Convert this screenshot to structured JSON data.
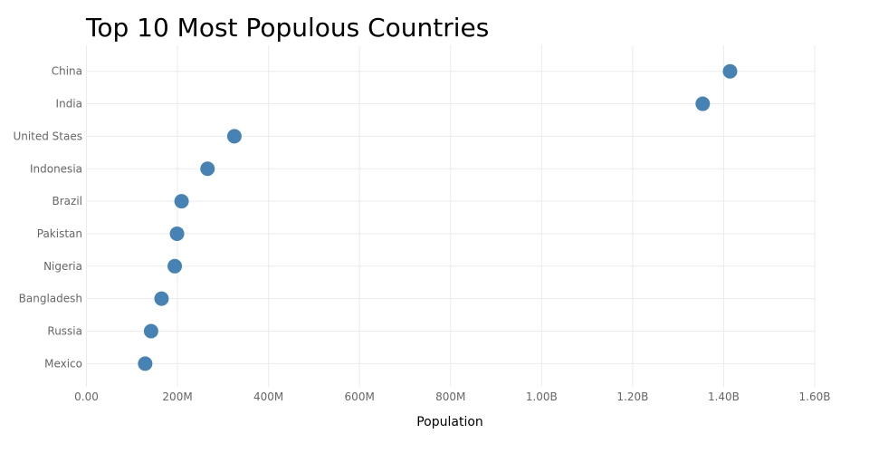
{
  "chart_data": {
    "type": "scatter",
    "title": "Top 10 Most Populous Countries",
    "xlabel": "Population",
    "ylabel": "",
    "xlim": [
      0,
      1600000000
    ],
    "x_ticks": [
      0,
      200000000,
      400000000,
      600000000,
      800000000,
      1000000000,
      1200000000,
      1400000000,
      1600000000
    ],
    "x_tick_labels": [
      "0.00",
      "200M",
      "400M",
      "600M",
      "800M",
      "1.00B",
      "1.20B",
      "1.40B",
      "1.60B"
    ],
    "categories": [
      "China",
      "India",
      "United Staes",
      "Indonesia",
      "Brazil",
      "Pakistan",
      "Nigeria",
      "Bangladesh",
      "Russia",
      "Mexico"
    ],
    "values": [
      1414000000,
      1354000000,
      325000000,
      266000000,
      209000000,
      199000000,
      194000000,
      165000000,
      142000000,
      129000000
    ],
    "grid": true,
    "marker_color": "#4682b4"
  }
}
